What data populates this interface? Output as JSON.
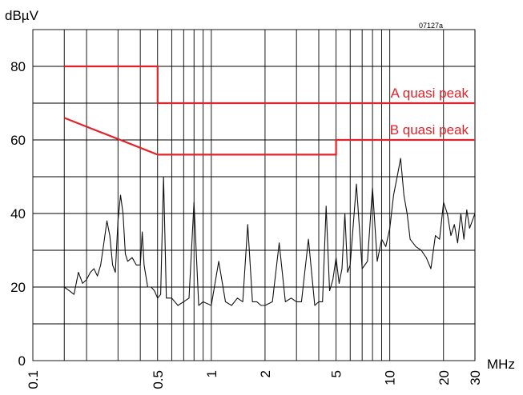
{
  "chart_data": {
    "type": "line",
    "title": "",
    "reference_code": "07127a",
    "ylabel": "dBµV",
    "xlabel": "MHz",
    "x_scale": "log",
    "xlim": [
      0.1,
      30
    ],
    "ylim": [
      0,
      90
    ],
    "grid": true,
    "y_ticks": [
      0,
      20,
      40,
      60,
      80
    ],
    "y_tick_labels": [
      "0",
      "20",
      "40",
      "60",
      "80"
    ],
    "x_ticks": [
      0.1,
      0.5,
      1,
      2,
      5,
      10,
      20,
      30
    ],
    "x_tick_labels": [
      "0.1",
      "0.5",
      "1",
      "2",
      "5",
      "10",
      "20",
      "30"
    ],
    "x_gridlines": [
      0.15,
      0.2,
      0.3,
      0.4,
      0.5,
      0.6,
      0.7,
      0.8,
      0.9,
      1,
      2,
      3,
      4,
      5,
      6,
      7,
      8,
      9,
      10,
      20,
      30
    ],
    "y_gridlines": [
      10,
      20,
      30,
      40,
      50,
      60,
      70,
      80
    ],
    "series": [
      {
        "name": "A quasi peak",
        "color": "#e3232a",
        "points": [
          [
            0.15,
            80
          ],
          [
            0.5,
            80
          ],
          [
            0.5,
            70
          ],
          [
            30,
            70
          ]
        ]
      },
      {
        "name": "B quasi peak",
        "color": "#e3232a",
        "points": [
          [
            0.15,
            66
          ],
          [
            0.5,
            56
          ],
          [
            5,
            56
          ],
          [
            5,
            60
          ],
          [
            30,
            60
          ]
        ]
      },
      {
        "name": "",
        "color": "#111111",
        "points": [
          [
            0.15,
            20
          ],
          [
            0.16,
            19
          ],
          [
            0.17,
            18
          ],
          [
            0.18,
            24
          ],
          [
            0.19,
            21
          ],
          [
            0.2,
            22
          ],
          [
            0.21,
            24
          ],
          [
            0.22,
            25
          ],
          [
            0.23,
            23
          ],
          [
            0.24,
            26
          ],
          [
            0.25,
            32
          ],
          [
            0.26,
            38
          ],
          [
            0.27,
            34
          ],
          [
            0.28,
            26
          ],
          [
            0.29,
            24
          ],
          [
            0.3,
            38
          ],
          [
            0.31,
            45
          ],
          [
            0.32,
            40
          ],
          [
            0.33,
            29
          ],
          [
            0.34,
            27
          ],
          [
            0.36,
            28
          ],
          [
            0.38,
            26
          ],
          [
            0.4,
            26
          ],
          [
            0.41,
            35
          ],
          [
            0.42,
            26
          ],
          [
            0.44,
            20
          ],
          [
            0.46,
            20
          ],
          [
            0.48,
            19
          ],
          [
            0.5,
            17
          ],
          [
            0.52,
            18
          ],
          [
            0.54,
            50
          ],
          [
            0.56,
            17
          ],
          [
            0.6,
            17
          ],
          [
            0.65,
            15
          ],
          [
            0.7,
            16
          ],
          [
            0.75,
            17
          ],
          [
            0.8,
            43
          ],
          [
            0.85,
            15
          ],
          [
            0.9,
            16
          ],
          [
            1.0,
            15
          ],
          [
            1.1,
            27
          ],
          [
            1.2,
            16
          ],
          [
            1.3,
            15
          ],
          [
            1.4,
            17
          ],
          [
            1.5,
            16
          ],
          [
            1.6,
            37
          ],
          [
            1.7,
            16
          ],
          [
            1.8,
            16
          ],
          [
            1.9,
            15
          ],
          [
            2.0,
            15
          ],
          [
            2.2,
            16
          ],
          [
            2.4,
            32
          ],
          [
            2.6,
            16
          ],
          [
            2.8,
            17
          ],
          [
            3.0,
            16
          ],
          [
            3.2,
            16
          ],
          [
            3.5,
            33
          ],
          [
            3.8,
            15
          ],
          [
            4.0,
            16
          ],
          [
            4.2,
            16
          ],
          [
            4.4,
            42
          ],
          [
            4.6,
            19
          ],
          [
            4.8,
            22
          ],
          [
            5.0,
            28
          ],
          [
            5.2,
            21
          ],
          [
            5.4,
            25
          ],
          [
            5.6,
            40
          ],
          [
            5.8,
            24
          ],
          [
            6.0,
            26
          ],
          [
            6.5,
            48
          ],
          [
            7.0,
            25
          ],
          [
            7.5,
            27
          ],
          [
            8.0,
            47
          ],
          [
            8.5,
            27
          ],
          [
            9.0,
            33
          ],
          [
            9.5,
            31
          ],
          [
            10.0,
            36
          ],
          [
            10.5,
            45
          ],
          [
            11.0,
            50
          ],
          [
            11.5,
            55
          ],
          [
            12.0,
            45
          ],
          [
            12.5,
            40
          ],
          [
            13.0,
            33
          ],
          [
            14.0,
            31
          ],
          [
            15.0,
            30
          ],
          [
            16.0,
            28
          ],
          [
            17.0,
            25
          ],
          [
            18.0,
            34
          ],
          [
            19.0,
            33
          ],
          [
            20.0,
            43
          ],
          [
            21.0,
            40
          ],
          [
            22.0,
            34
          ],
          [
            23.0,
            37
          ],
          [
            24.0,
            32
          ],
          [
            25.0,
            40
          ],
          [
            26.0,
            33
          ],
          [
            27.0,
            41
          ],
          [
            28.0,
            36
          ],
          [
            29.0,
            38
          ],
          [
            30.0,
            40
          ]
        ]
      }
    ]
  }
}
